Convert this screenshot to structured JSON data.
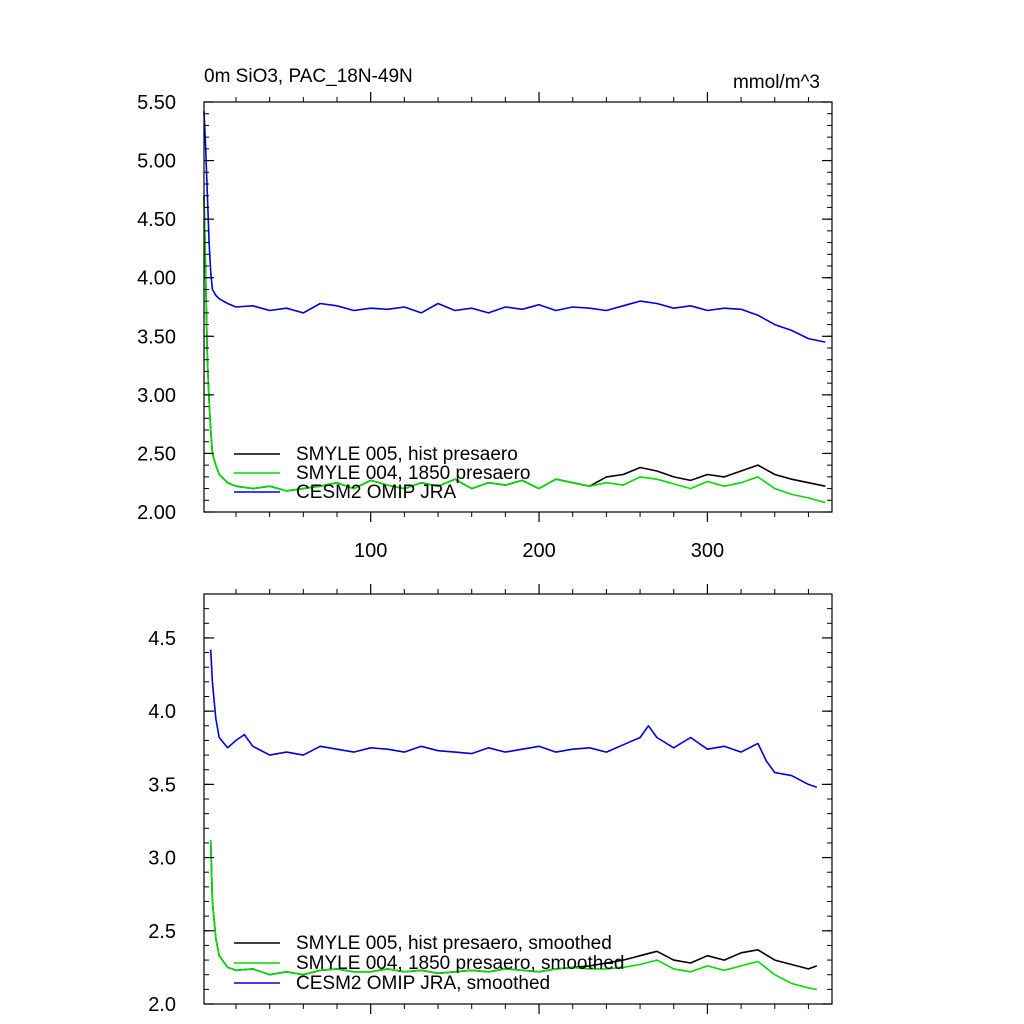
{
  "chart_data": [
    {
      "type": "line",
      "title": "0m SiO3, PAC_18N-49N",
      "units": "mmol/m^3",
      "xlabel": "",
      "ylabel": "",
      "xlim": [
        1,
        374
      ],
      "ylim": [
        2.0,
        5.5
      ],
      "x_ticks": [
        100,
        200,
        300
      ],
      "x_tick_labels": [
        "100",
        "200",
        "300"
      ],
      "y_ticks": [
        2.0,
        2.5,
        3.0,
        3.5,
        4.0,
        4.5,
        5.0,
        5.5
      ],
      "y_tick_labels": [
        "2.00",
        "2.50",
        "3.00",
        "3.50",
        "4.00",
        "4.50",
        "5.00",
        "5.50"
      ],
      "grid": false,
      "legend_position": "bottom-left",
      "series": [
        {
          "name": "SMYLE 005, hist presaero",
          "color": "#000000",
          "x": [
            1,
            2,
            3,
            4,
            5,
            6,
            8,
            10,
            15,
            20,
            30,
            40,
            50,
            60,
            70,
            80,
            90,
            100,
            110,
            120,
            130,
            140,
            150,
            160,
            170,
            180,
            190,
            200,
            210,
            220,
            230,
            240,
            250,
            260,
            270,
            280,
            290,
            300,
            310,
            320,
            330,
            340,
            350,
            360,
            370
          ],
          "y": [
            4.7,
            4.0,
            3.3,
            2.95,
            2.7,
            2.5,
            2.4,
            2.32,
            2.25,
            2.22,
            2.2,
            2.22,
            2.18,
            2.2,
            2.22,
            2.25,
            2.2,
            2.27,
            2.23,
            2.2,
            2.25,
            2.22,
            2.28,
            2.2,
            2.25,
            2.23,
            2.27,
            2.2,
            2.28,
            2.25,
            2.22,
            2.3,
            2.32,
            2.38,
            2.35,
            2.3,
            2.27,
            2.32,
            2.3,
            2.35,
            2.4,
            2.32,
            2.28,
            2.25,
            2.22
          ]
        },
        {
          "name": "SMYLE 004, 1850 presaero",
          "color": "#00dd00",
          "x": [
            1,
            2,
            3,
            4,
            5,
            6,
            8,
            10,
            15,
            20,
            30,
            40,
            50,
            60,
            70,
            80,
            90,
            100,
            110,
            120,
            130,
            140,
            150,
            160,
            170,
            180,
            190,
            200,
            210,
            220,
            230,
            240,
            250,
            260,
            270,
            280,
            290,
            300,
            310,
            320,
            330,
            340,
            350,
            360,
            370
          ],
          "y": [
            4.7,
            4.0,
            3.3,
            2.95,
            2.7,
            2.5,
            2.4,
            2.32,
            2.25,
            2.22,
            2.2,
            2.22,
            2.18,
            2.2,
            2.22,
            2.25,
            2.2,
            2.27,
            2.23,
            2.2,
            2.25,
            2.22,
            2.28,
            2.2,
            2.25,
            2.23,
            2.27,
            2.2,
            2.28,
            2.25,
            2.22,
            2.25,
            2.23,
            2.3,
            2.28,
            2.24,
            2.2,
            2.26,
            2.22,
            2.25,
            2.3,
            2.2,
            2.15,
            2.12,
            2.08
          ]
        },
        {
          "name": "CESM2 OMIP JRA",
          "color": "#0000dd",
          "x": [
            1,
            2,
            3,
            4,
            5,
            6,
            8,
            10,
            15,
            20,
            30,
            40,
            50,
            60,
            70,
            80,
            90,
            100,
            110,
            120,
            130,
            140,
            150,
            160,
            170,
            180,
            190,
            200,
            210,
            220,
            230,
            240,
            250,
            260,
            270,
            280,
            290,
            300,
            310,
            320,
            330,
            340,
            350,
            360,
            370
          ],
          "y": [
            5.42,
            5.1,
            4.7,
            4.3,
            4.05,
            3.9,
            3.85,
            3.82,
            3.78,
            3.75,
            3.76,
            3.72,
            3.74,
            3.7,
            3.78,
            3.76,
            3.72,
            3.74,
            3.73,
            3.75,
            3.7,
            3.78,
            3.72,
            3.74,
            3.7,
            3.75,
            3.73,
            3.77,
            3.72,
            3.75,
            3.74,
            3.72,
            3.76,
            3.8,
            3.78,
            3.74,
            3.76,
            3.72,
            3.74,
            3.73,
            3.68,
            3.6,
            3.55,
            3.48,
            3.45
          ]
        }
      ]
    },
    {
      "type": "line",
      "title": "",
      "units": "",
      "xlabel": "",
      "ylabel": "",
      "xlim": [
        1,
        374
      ],
      "ylim": [
        2.0,
        4.8
      ],
      "x_ticks": [
        100,
        200,
        300
      ],
      "x_tick_labels": [],
      "y_ticks": [
        2.0,
        2.5,
        3.0,
        3.5,
        4.0,
        4.5
      ],
      "y_tick_labels": [
        "2.0",
        "2.5",
        "3.0",
        "3.5",
        "4.0",
        "4.5"
      ],
      "grid": false,
      "legend_position": "bottom-left",
      "series": [
        {
          "name": "SMYLE 005, hist presaero, smoothed",
          "color": "#000000",
          "x": [
            5,
            6,
            8,
            10,
            15,
            20,
            30,
            40,
            50,
            60,
            70,
            80,
            90,
            100,
            110,
            120,
            130,
            140,
            150,
            160,
            170,
            180,
            190,
            200,
            210,
            220,
            230,
            240,
            250,
            260,
            270,
            280,
            290,
            300,
            310,
            320,
            330,
            340,
            350,
            360,
            365
          ],
          "y": [
            3.12,
            2.7,
            2.45,
            2.33,
            2.25,
            2.23,
            2.24,
            2.2,
            2.22,
            2.2,
            2.23,
            2.24,
            2.22,
            2.22,
            2.24,
            2.22,
            2.23,
            2.21,
            2.22,
            2.23,
            2.22,
            2.24,
            2.23,
            2.22,
            2.24,
            2.25,
            2.26,
            2.28,
            2.3,
            2.33,
            2.36,
            2.3,
            2.28,
            2.33,
            2.3,
            2.35,
            2.37,
            2.3,
            2.27,
            2.24,
            2.26
          ]
        },
        {
          "name": "SMYLE 004, 1850 presaero, smoothed",
          "color": "#00dd00",
          "x": [
            5,
            6,
            8,
            10,
            15,
            20,
            30,
            40,
            50,
            60,
            70,
            80,
            90,
            100,
            110,
            120,
            130,
            140,
            150,
            160,
            170,
            180,
            190,
            200,
            210,
            220,
            230,
            240,
            250,
            260,
            270,
            280,
            290,
            300,
            310,
            320,
            330,
            340,
            350,
            360,
            365
          ],
          "y": [
            3.12,
            2.7,
            2.45,
            2.33,
            2.25,
            2.23,
            2.24,
            2.2,
            2.22,
            2.2,
            2.23,
            2.24,
            2.22,
            2.22,
            2.24,
            2.22,
            2.23,
            2.21,
            2.22,
            2.23,
            2.22,
            2.24,
            2.23,
            2.22,
            2.24,
            2.25,
            2.24,
            2.24,
            2.25,
            2.27,
            2.3,
            2.24,
            2.22,
            2.26,
            2.23,
            2.26,
            2.29,
            2.2,
            2.14,
            2.11,
            2.1
          ]
        },
        {
          "name": "CESM2 OMIP JRA, smoothed",
          "color": "#0000dd",
          "x": [
            5,
            6,
            8,
            10,
            15,
            20,
            25,
            30,
            40,
            50,
            60,
            70,
            80,
            90,
            100,
            110,
            120,
            130,
            140,
            150,
            160,
            170,
            180,
            190,
            200,
            210,
            220,
            230,
            240,
            250,
            260,
            265,
            270,
            280,
            290,
            300,
            310,
            320,
            330,
            335,
            340,
            350,
            360,
            365
          ],
          "y": [
            4.42,
            4.2,
            3.95,
            3.82,
            3.75,
            3.8,
            3.84,
            3.76,
            3.7,
            3.72,
            3.7,
            3.76,
            3.74,
            3.72,
            3.75,
            3.74,
            3.72,
            3.76,
            3.73,
            3.72,
            3.71,
            3.75,
            3.72,
            3.74,
            3.76,
            3.72,
            3.74,
            3.75,
            3.72,
            3.77,
            3.82,
            3.9,
            3.82,
            3.75,
            3.82,
            3.74,
            3.76,
            3.72,
            3.78,
            3.66,
            3.58,
            3.56,
            3.5,
            3.48
          ]
        }
      ]
    }
  ]
}
